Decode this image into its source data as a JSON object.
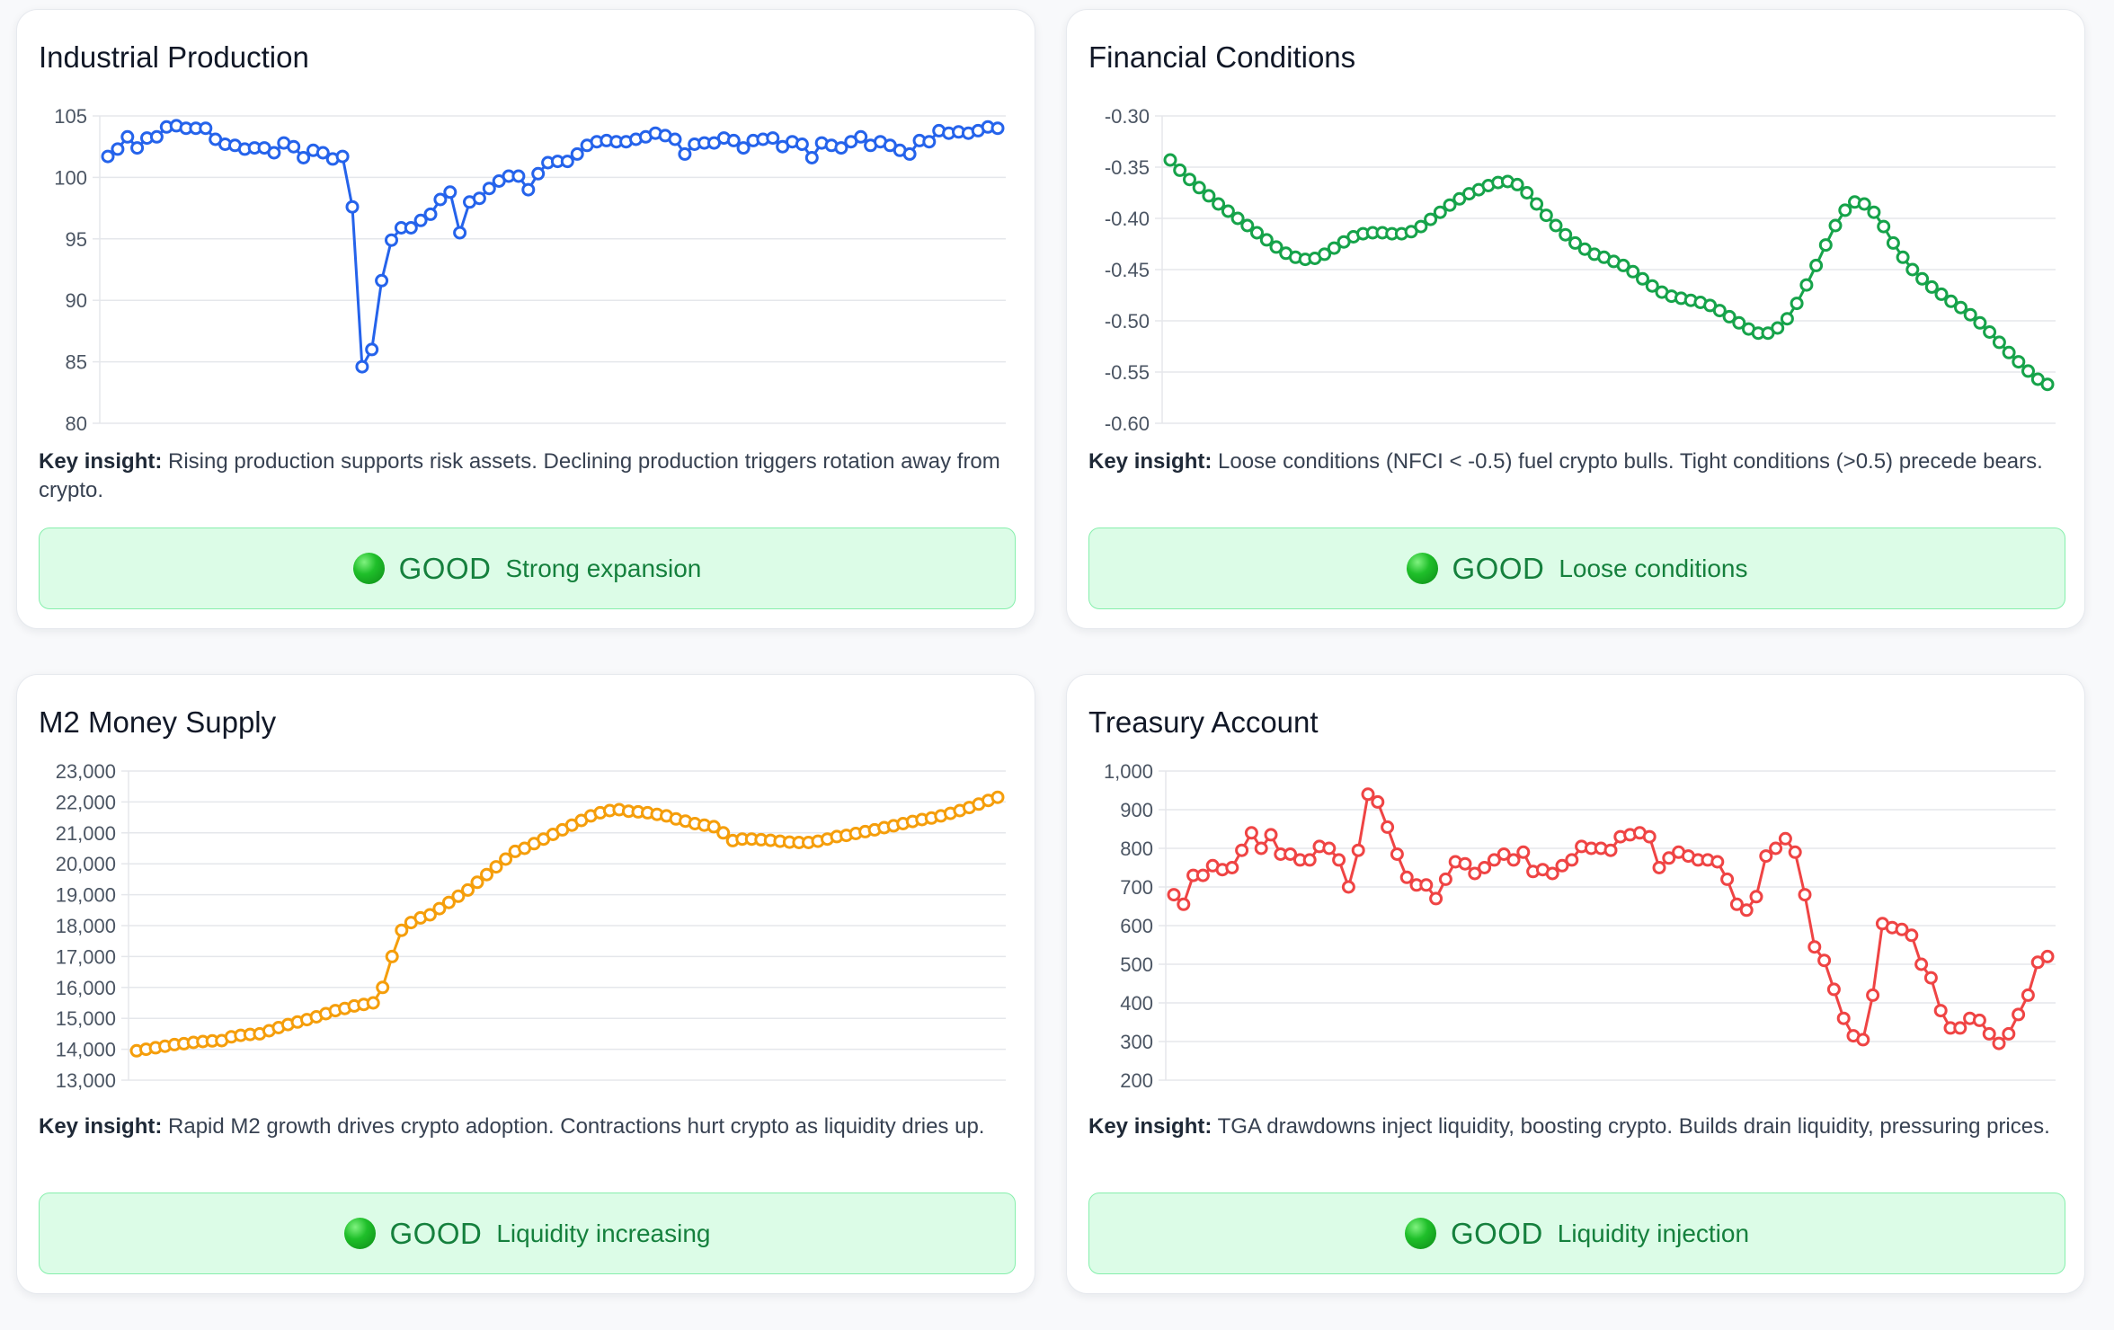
{
  "cards": [
    {
      "title": "Industrial Production",
      "insight_label": "Key insight:",
      "insight_text": "Rising production supports risk assets. Declining production triggers rotation away from crypto.",
      "status": {
        "level": "GOOD",
        "text": "Strong expansion"
      }
    },
    {
      "title": "Financial Conditions",
      "insight_label": "Key insight:",
      "insight_text": "Loose conditions (NFCI < -0.5) fuel crypto bulls. Tight conditions (>0.5) precede bears.",
      "status": {
        "level": "GOOD",
        "text": "Loose conditions"
      }
    },
    {
      "title": "M2 Money Supply",
      "insight_label": "Key insight:",
      "insight_text": "Rapid M2 growth drives crypto adoption. Contractions hurt crypto as liquidity dries up.",
      "status": {
        "level": "GOOD",
        "text": "Liquidity increasing"
      }
    },
    {
      "title": "Treasury Account",
      "insight_label": "Key insight:",
      "insight_text": "TGA drawdowns inject liquidity, boosting crypto. Builds drain liquidity, pressuring prices.",
      "status": {
        "level": "GOOD",
        "text": "Liquidity injection"
      }
    }
  ],
  "chart_data": [
    {
      "type": "line",
      "title": "Industrial Production",
      "color": "#2563eb",
      "ylim": [
        80,
        105
      ],
      "yticks": [
        80,
        85,
        90,
        95,
        100,
        105
      ],
      "ytick_labels": [
        "80",
        "85",
        "90",
        "95",
        "100",
        "105"
      ],
      "grid": true,
      "values": [
        101.7,
        102.3,
        103.3,
        102.4,
        103.2,
        103.3,
        104.1,
        104.2,
        104.0,
        104.0,
        104.0,
        103.1,
        102.7,
        102.6,
        102.3,
        102.4,
        102.4,
        102.0,
        102.8,
        102.5,
        101.6,
        102.2,
        102.0,
        101.5,
        101.7,
        97.6,
        84.6,
        86.0,
        91.6,
        94.9,
        95.9,
        95.9,
        96.5,
        97.0,
        98.2,
        98.8,
        95.5,
        98.0,
        98.3,
        99.1,
        99.7,
        100.1,
        100.1,
        99.0,
        100.3,
        101.2,
        101.3,
        101.3,
        101.9,
        102.6,
        102.9,
        103.0,
        102.9,
        102.9,
        103.1,
        103.3,
        103.6,
        103.4,
        103.1,
        101.9,
        102.7,
        102.8,
        102.8,
        103.2,
        103.0,
        102.4,
        103.0,
        103.1,
        103.2,
        102.5,
        102.9,
        102.7,
        101.6,
        102.8,
        102.6,
        102.4,
        102.9,
        103.3,
        102.6,
        102.9,
        102.6,
        102.2,
        101.9,
        103.0,
        102.9,
        103.8,
        103.6,
        103.7,
        103.6,
        103.8,
        104.1,
        104.0
      ]
    },
    {
      "type": "line",
      "title": "Financial Conditions",
      "color": "#16a34a",
      "ylim": [
        -0.6,
        -0.3
      ],
      "yticks": [
        -0.6,
        -0.55,
        -0.5,
        -0.45,
        -0.4,
        -0.35,
        -0.3
      ],
      "ytick_labels": [
        "-0.60",
        "-0.55",
        "-0.50",
        "-0.45",
        "-0.40",
        "-0.35",
        "-0.30"
      ],
      "grid": true,
      "values": [
        -0.343,
        -0.353,
        -0.362,
        -0.37,
        -0.378,
        -0.386,
        -0.393,
        -0.4,
        -0.407,
        -0.414,
        -0.421,
        -0.428,
        -0.434,
        -0.438,
        -0.44,
        -0.439,
        -0.435,
        -0.429,
        -0.423,
        -0.418,
        -0.415,
        -0.414,
        -0.414,
        -0.415,
        -0.415,
        -0.413,
        -0.408,
        -0.401,
        -0.394,
        -0.387,
        -0.381,
        -0.376,
        -0.372,
        -0.368,
        -0.365,
        -0.364,
        -0.367,
        -0.375,
        -0.386,
        -0.397,
        -0.407,
        -0.416,
        -0.424,
        -0.43,
        -0.435,
        -0.438,
        -0.442,
        -0.446,
        -0.452,
        -0.459,
        -0.466,
        -0.472,
        -0.476,
        -0.478,
        -0.48,
        -0.482,
        -0.485,
        -0.49,
        -0.496,
        -0.502,
        -0.508,
        -0.512,
        -0.512,
        -0.507,
        -0.498,
        -0.483,
        -0.465,
        -0.446,
        -0.426,
        -0.407,
        -0.392,
        -0.384,
        -0.386,
        -0.394,
        -0.408,
        -0.424,
        -0.438,
        -0.45,
        -0.459,
        -0.467,
        -0.474,
        -0.481,
        -0.487,
        -0.494,
        -0.502,
        -0.511,
        -0.521,
        -0.531,
        -0.54,
        -0.549,
        -0.557,
        -0.562
      ]
    },
    {
      "type": "line",
      "title": "M2 Money Supply",
      "color": "#f59e0b",
      "ylim": [
        13000,
        23000
      ],
      "yticks": [
        13000,
        14000,
        15000,
        16000,
        17000,
        18000,
        19000,
        20000,
        21000,
        22000,
        23000
      ],
      "ytick_labels": [
        "13,000",
        "14,000",
        "15,000",
        "16,000",
        "17,000",
        "18,000",
        "19,000",
        "20,000",
        "21,000",
        "22,000",
        "23,000"
      ],
      "grid": true,
      "values": [
        13950,
        14000,
        14050,
        14100,
        14150,
        14180,
        14220,
        14250,
        14270,
        14280,
        14400,
        14450,
        14480,
        14500,
        14600,
        14700,
        14800,
        14880,
        14960,
        15050,
        15150,
        15250,
        15320,
        15400,
        15450,
        15500,
        16000,
        17000,
        17850,
        18100,
        18250,
        18350,
        18550,
        18750,
        18950,
        19150,
        19400,
        19650,
        19900,
        20150,
        20400,
        20500,
        20650,
        20800,
        20950,
        21100,
        21250,
        21400,
        21550,
        21650,
        21720,
        21750,
        21700,
        21680,
        21650,
        21600,
        21550,
        21450,
        21380,
        21300,
        21250,
        21200,
        21000,
        20750,
        20800,
        20800,
        20780,
        20760,
        20730,
        20700,
        20690,
        20690,
        20730,
        20800,
        20880,
        20920,
        20980,
        21040,
        21100,
        21170,
        21230,
        21300,
        21370,
        21430,
        21480,
        21550,
        21630,
        21720,
        21820,
        21930,
        22050,
        22150
      ]
    },
    {
      "type": "line",
      "title": "Treasury Account",
      "color": "#ef4444",
      "ylim": [
        200,
        1000
      ],
      "yticks": [
        200,
        300,
        400,
        500,
        600,
        700,
        800,
        900,
        1000
      ],
      "ytick_labels": [
        "200",
        "300",
        "400",
        "500",
        "600",
        "700",
        "800",
        "900",
        "1,000"
      ],
      "grid": true,
      "values": [
        680,
        655,
        730,
        730,
        755,
        745,
        750,
        795,
        840,
        800,
        835,
        785,
        785,
        770,
        770,
        805,
        800,
        770,
        700,
        795,
        940,
        920,
        855,
        785,
        725,
        705,
        705,
        670,
        720,
        765,
        760,
        735,
        750,
        770,
        785,
        770,
        790,
        740,
        745,
        735,
        755,
        770,
        805,
        800,
        800,
        795,
        830,
        835,
        840,
        830,
        750,
        775,
        790,
        780,
        770,
        770,
        765,
        720,
        655,
        640,
        675,
        780,
        800,
        825,
        790,
        680,
        545,
        510,
        435,
        360,
        315,
        305,
        420,
        605,
        595,
        590,
        575,
        500,
        465,
        380,
        335,
        335,
        360,
        355,
        320,
        295,
        320,
        370,
        420,
        505,
        520
      ]
    }
  ]
}
